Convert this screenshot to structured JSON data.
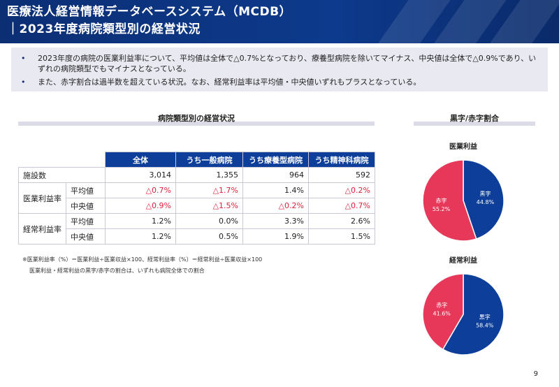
{
  "header": {
    "title_line1": "医療法人経営情報データベースシステム（MCDB）",
    "title_line2": "｜2023年度病院類型別の経営状況"
  },
  "summary": {
    "bullets": [
      "2023年度の病院の医業利益率について、平均値は全体で△0.7%となっており、療養型病院を除いてマイナス、中央値は全体で△0.9%であり、いずれの病院類型でもマイナスとなっている。",
      "また、赤字割合は過半数を超えている状況。なお、経常利益率は平均値・中央値いずれもプラスとなっている。"
    ],
    "bullet_symbol": "•"
  },
  "table_section": {
    "title": "病院類型別の経営状況",
    "headers": [
      "全体",
      "うち一般病院",
      "うち療養型病院",
      "うち精神科病院"
    ],
    "rows": {
      "facilities": {
        "label": "施設数",
        "values": [
          "3,014",
          "1,355",
          "964",
          "592"
        ]
      },
      "op_margin": {
        "label": "医業利益率",
        "avg": {
          "label": "平均値",
          "values": [
            "△0.7%",
            "△1.7%",
            "1.4%",
            "△0.2%"
          ]
        },
        "median": {
          "label": "中央値",
          "values": [
            "△0.9%",
            "△1.5%",
            "△0.2%",
            "△0.7%"
          ]
        }
      },
      "ord_margin": {
        "label": "経常利益率",
        "avg": {
          "label": "平均値",
          "values": [
            "1.2%",
            "0.0%",
            "3.3%",
            "2.6%"
          ]
        },
        "median": {
          "label": "中央値",
          "values": [
            "1.2%",
            "0.5%",
            "1.9%",
            "1.5%"
          ]
        }
      }
    },
    "notes": [
      "※医業利益率（%）＝医業利益÷医業収益×100、経常利益率（%）＝経常利益÷医業収益×100",
      "医業利益・経常利益の黒字/赤字の割合は、いずれも病院全体での割合"
    ]
  },
  "pie_section": {
    "title": "黒字/赤字割合"
  },
  "chart_data": [
    {
      "type": "pie",
      "title": "医業利益",
      "slices": [
        {
          "label": "黒字",
          "value": 44.8,
          "display": "44.8%",
          "color": "#0d3f9a"
        },
        {
          "label": "赤字",
          "value": 55.2,
          "display": "55.2%",
          "color": "#e8385a"
        }
      ]
    },
    {
      "type": "pie",
      "title": "経常利益",
      "slices": [
        {
          "label": "黒字",
          "value": 58.4,
          "display": "58.4%",
          "color": "#0d3f9a"
        },
        {
          "label": "赤字",
          "value": 41.6,
          "display": "41.6%",
          "color": "#e8385a"
        }
      ]
    }
  ],
  "page_number": "9",
  "colors": {
    "header": "#0d3a8c",
    "accent": "#0d3f9a",
    "negative": "#e0203c",
    "deficit": "#e8385a"
  }
}
